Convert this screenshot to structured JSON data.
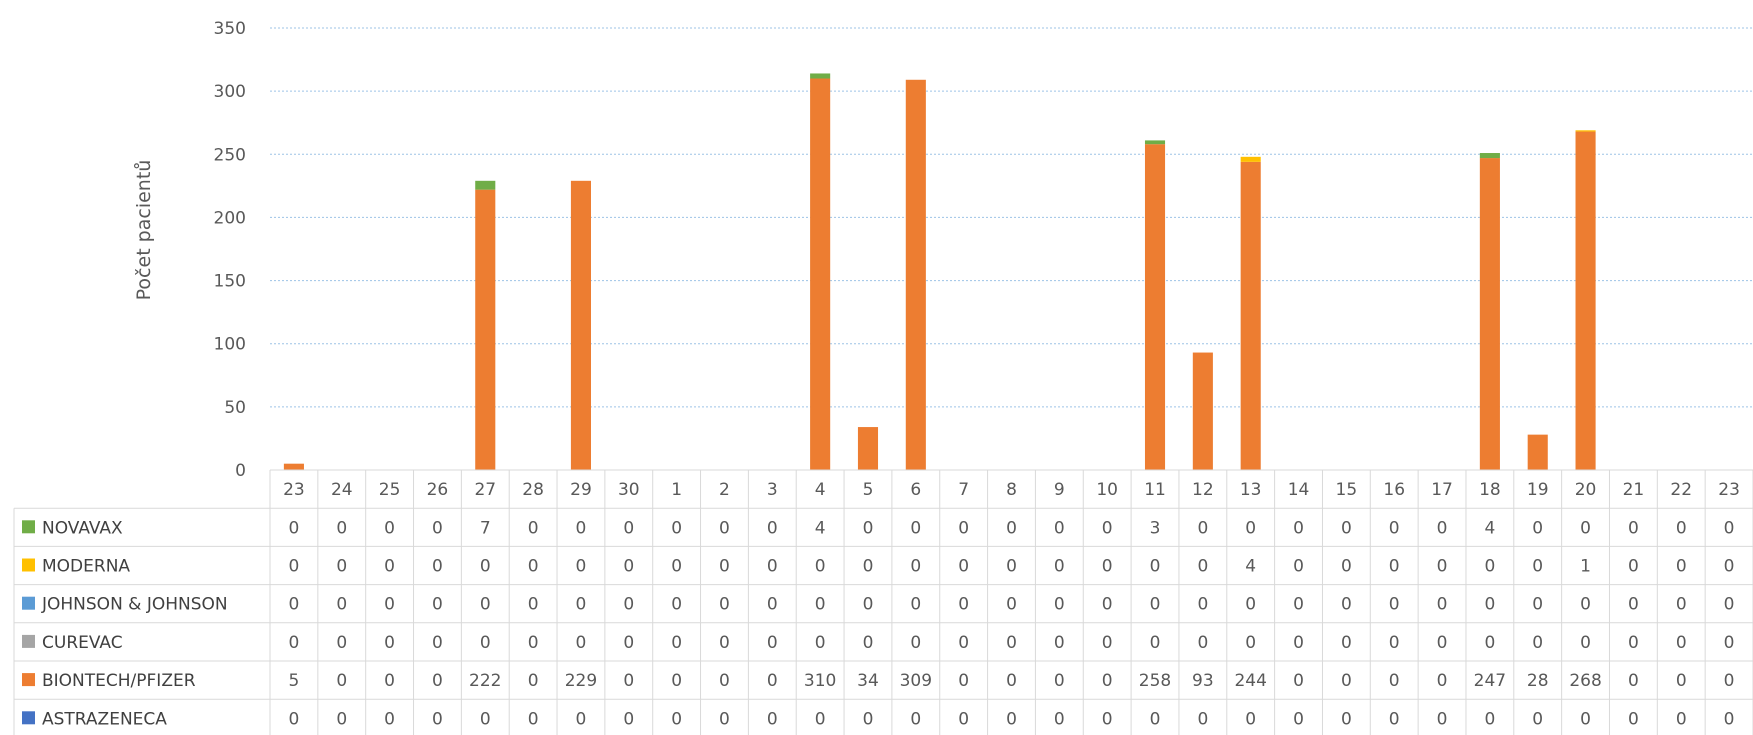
{
  "chart_data": {
    "type": "bar",
    "stacked": true,
    "ylabel": "Počet pacientů",
    "ylim": [
      0,
      350
    ],
    "yticks": [
      0,
      50,
      100,
      150,
      200,
      250,
      300,
      350
    ],
    "grid": true,
    "legend": "data-table",
    "categories": [
      "23",
      "24",
      "25",
      "26",
      "27",
      "28",
      "29",
      "30",
      "1",
      "2",
      "3",
      "4",
      "5",
      "6",
      "7",
      "8",
      "9",
      "10",
      "11",
      "12",
      "13",
      "14",
      "15",
      "16",
      "17",
      "18",
      "19",
      "20",
      "21",
      "22",
      "23"
    ],
    "series": [
      {
        "name": "NOVAVAX",
        "color": "#70ad47",
        "values": [
          0,
          0,
          0,
          0,
          7,
          0,
          0,
          0,
          0,
          0,
          0,
          4,
          0,
          0,
          0,
          0,
          0,
          0,
          3,
          0,
          0,
          0,
          0,
          0,
          0,
          4,
          0,
          0,
          0,
          0,
          0
        ]
      },
      {
        "name": "MODERNA",
        "color": "#ffc000",
        "values": [
          0,
          0,
          0,
          0,
          0,
          0,
          0,
          0,
          0,
          0,
          0,
          0,
          0,
          0,
          0,
          0,
          0,
          0,
          0,
          0,
          4,
          0,
          0,
          0,
          0,
          0,
          0,
          1,
          0,
          0,
          0
        ]
      },
      {
        "name": "JOHNSON & JOHNSON",
        "color": "#5b9bd5",
        "values": [
          0,
          0,
          0,
          0,
          0,
          0,
          0,
          0,
          0,
          0,
          0,
          0,
          0,
          0,
          0,
          0,
          0,
          0,
          0,
          0,
          0,
          0,
          0,
          0,
          0,
          0,
          0,
          0,
          0,
          0,
          0
        ]
      },
      {
        "name": "CUREVAC",
        "color": "#a5a5a5",
        "values": [
          0,
          0,
          0,
          0,
          0,
          0,
          0,
          0,
          0,
          0,
          0,
          0,
          0,
          0,
          0,
          0,
          0,
          0,
          0,
          0,
          0,
          0,
          0,
          0,
          0,
          0,
          0,
          0,
          0,
          0,
          0
        ]
      },
      {
        "name": "BIONTECH/PFIZER",
        "color": "#ed7d31",
        "values": [
          5,
          0,
          0,
          0,
          222,
          0,
          229,
          0,
          0,
          0,
          0,
          310,
          34,
          309,
          0,
          0,
          0,
          0,
          258,
          93,
          244,
          0,
          0,
          0,
          0,
          247,
          28,
          268,
          0,
          0,
          0
        ]
      },
      {
        "name": "ASTRAZENECA",
        "color": "#4472c4",
        "values": [
          0,
          0,
          0,
          0,
          0,
          0,
          0,
          0,
          0,
          0,
          0,
          0,
          0,
          0,
          0,
          0,
          0,
          0,
          0,
          0,
          0,
          0,
          0,
          0,
          0,
          0,
          0,
          0,
          0,
          0,
          0
        ]
      }
    ]
  }
}
